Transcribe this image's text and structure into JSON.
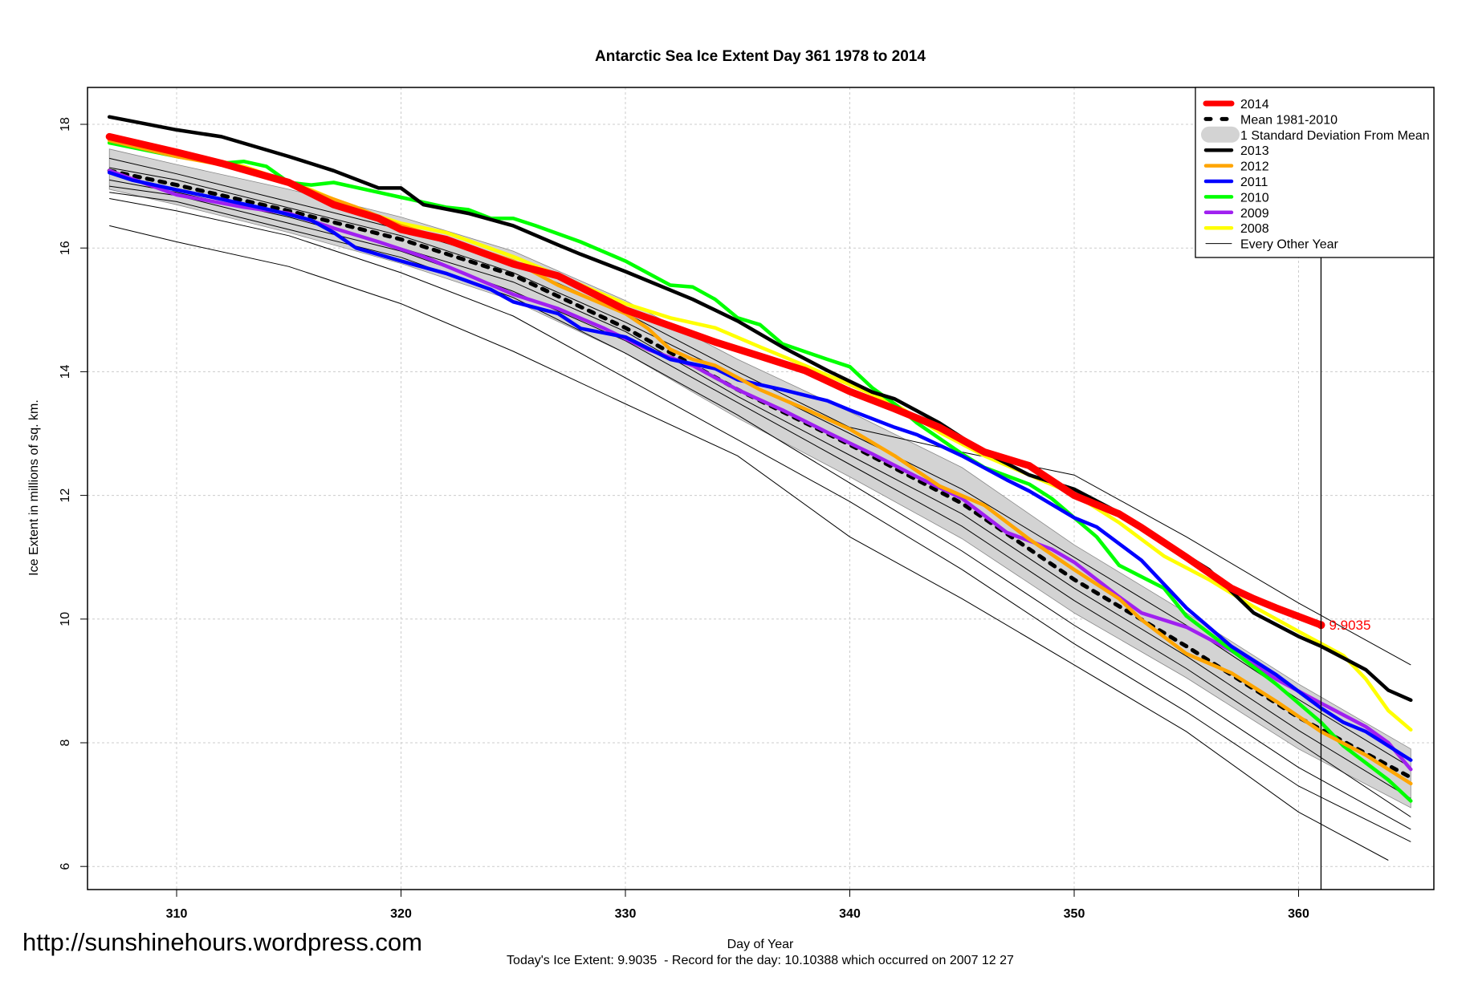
{
  "chart_data": {
    "type": "line",
    "title": "Antarctic Sea Ice Extent Day 361 1978 to 2014",
    "xlabel": "Day of Year",
    "ylabel": "Ice Extent in millions of sq. km.",
    "xlim": [
      307,
      365
    ],
    "ylim": [
      5.7,
      18.6
    ],
    "x_ticks": [
      310,
      320,
      330,
      340,
      350,
      360
    ],
    "y_ticks": [
      6,
      8,
      10,
      12,
      14,
      16,
      18
    ],
    "grid": true,
    "legend_position": "top-right",
    "current_day": 361,
    "current_value_label": "9.9035",
    "footnote": "Today's Ice Extent: 9.9035  - Record for the day: 10.10388 which occurred on 2007 12 27",
    "watermark": "http://sunshinehours.wordpress.com",
    "legend": [
      {
        "label": "2014",
        "color": "#ff0000",
        "style": "thick"
      },
      {
        "label": "Mean 1981-2010",
        "color": "#000000",
        "style": "dashed"
      },
      {
        "label": "1 Standard Deviation From Mean",
        "color": "#d3d3d3",
        "style": "band"
      },
      {
        "label": "2013",
        "color": "#000000",
        "style": "line"
      },
      {
        "label": "2012",
        "color": "#ffa500",
        "style": "line"
      },
      {
        "label": "2011",
        "color": "#0000ff",
        "style": "line"
      },
      {
        "label": "2010",
        "color": "#00ff00",
        "style": "line"
      },
      {
        "label": "2009",
        "color": "#a020f0",
        "style": "line"
      },
      {
        "label": "2008",
        "color": "#ffff00",
        "style": "line"
      },
      {
        "label": "Every Other Year",
        "color": "#000000",
        "style": "thin"
      }
    ],
    "sd_band": {
      "x": [
        307,
        310,
        315,
        320,
        325,
        330,
        335,
        340,
        345,
        350,
        355,
        360,
        365
      ],
      "upper": [
        17.6,
        17.35,
        16.95,
        16.5,
        15.95,
        15.15,
        14.2,
        13.35,
        12.45,
        11.2,
        10.1,
        8.95,
        7.9
      ],
      "lower": [
        16.95,
        16.7,
        16.25,
        15.75,
        15.15,
        14.3,
        13.25,
        12.3,
        11.3,
        10.1,
        9.05,
        7.9,
        6.95
      ]
    },
    "mean": {
      "x": [
        307,
        310,
        315,
        320,
        325,
        330,
        335,
        340,
        345,
        350,
        355,
        360,
        365
      ],
      "y": [
        17.25,
        17.02,
        16.6,
        16.14,
        15.56,
        14.71,
        13.71,
        12.82,
        11.87,
        10.64,
        9.56,
        8.41,
        7.44
      ]
    },
    "other_years": [
      {
        "x": [
          307,
          310,
          315,
          320,
          325,
          330,
          335,
          340,
          345,
          350,
          355,
          360,
          364
        ],
        "y": [
          16.36,
          16.1,
          15.7,
          15.1,
          14.33,
          13.48,
          12.64,
          11.33,
          10.33,
          9.26,
          8.18,
          6.88,
          6.1
        ]
      },
      {
        "x": [
          307,
          310,
          315,
          320,
          325,
          330,
          335,
          340,
          345,
          350,
          355,
          360,
          365
        ],
        "y": [
          17.45,
          17.2,
          16.75,
          16.3,
          15.75,
          14.95,
          14.0,
          13.1,
          12.7,
          12.33,
          11.33,
          10.26,
          9.26
        ]
      },
      {
        "x": [
          307,
          310,
          315,
          320,
          325,
          330,
          335,
          340,
          345,
          350,
          355,
          360,
          365
        ],
        "y": [
          16.8,
          16.6,
          16.2,
          15.6,
          14.9,
          13.9,
          12.9,
          11.9,
          10.8,
          9.6,
          8.5,
          7.3,
          6.4
        ]
      },
      {
        "x": [
          307,
          310,
          315,
          320,
          325,
          330,
          335,
          340,
          345,
          350,
          355,
          360,
          365
        ],
        "y": [
          17.0,
          16.85,
          16.4,
          15.95,
          15.3,
          14.5,
          13.5,
          12.5,
          11.5,
          10.3,
          9.2,
          8.0,
          6.8
        ]
      },
      {
        "x": [
          307,
          310,
          315,
          320,
          325,
          330,
          335,
          340,
          345,
          350,
          355,
          360,
          365
        ],
        "y": [
          17.3,
          17.1,
          16.65,
          16.2,
          15.6,
          14.8,
          13.9,
          13.0,
          12.1,
          11.0,
          9.9,
          8.7,
          7.6
        ]
      },
      {
        "x": [
          307,
          310,
          315,
          320,
          325,
          330,
          335,
          340,
          345,
          350,
          355,
          360,
          365
        ],
        "y": [
          16.9,
          16.75,
          16.3,
          15.85,
          15.2,
          14.3,
          13.3,
          12.2,
          11.1,
          9.9,
          8.8,
          7.6,
          6.6
        ]
      },
      {
        "x": [
          307,
          310,
          315,
          320,
          325,
          330,
          335,
          340,
          345,
          350,
          355,
          360,
          365
        ],
        "y": [
          17.1,
          16.9,
          16.5,
          16.0,
          15.45,
          14.65,
          13.6,
          12.65,
          11.7,
          10.5,
          9.4,
          8.2,
          7.1
        ]
      }
    ],
    "series": [
      {
        "name": "2008",
        "color": "#ffff00",
        "x": [
          307,
          310,
          313,
          316,
          318,
          320,
          322,
          325,
          327,
          330,
          332,
          334,
          336,
          338,
          340,
          342,
          344,
          346,
          348,
          350,
          352,
          354,
          356,
          358,
          360,
          362,
          363,
          364,
          365
        ],
        "y": [
          17.7,
          17.55,
          17.32,
          16.94,
          16.63,
          16.4,
          16.25,
          15.86,
          15.56,
          15.1,
          14.87,
          14.71,
          14.4,
          14.1,
          13.79,
          13.48,
          13.02,
          12.64,
          12.33,
          12.02,
          11.56,
          11.02,
          10.64,
          10.2,
          9.8,
          9.41,
          9.03,
          8.52,
          8.21
        ]
      },
      {
        "name": "2009",
        "color": "#a020f0",
        "x": [
          307,
          310,
          313,
          315,
          317,
          319,
          321,
          323,
          325,
          327,
          329,
          331,
          333,
          335,
          337,
          339,
          341,
          343,
          345,
          347,
          349,
          350,
          352,
          353,
          355,
          357,
          359,
          361,
          363,
          364,
          365
        ],
        "y": [
          17.25,
          16.86,
          16.66,
          16.56,
          16.32,
          16.1,
          15.86,
          15.56,
          15.25,
          15.02,
          14.71,
          14.36,
          14.1,
          13.71,
          13.38,
          13.02,
          12.67,
          12.3,
          11.95,
          11.4,
          11.13,
          10.92,
          10.36,
          10.1,
          9.87,
          9.49,
          9.03,
          8.64,
          8.26,
          8.0,
          7.57
        ]
      },
      {
        "name": "2010",
        "color": "#00ff00",
        "x": [
          307,
          310,
          312,
          313,
          314,
          315,
          316,
          317,
          319,
          320,
          322,
          323,
          324,
          325,
          326,
          328,
          330,
          332,
          333,
          334,
          335,
          336,
          337,
          339,
          340,
          341,
          342,
          343,
          345,
          346,
          348,
          349,
          351,
          352,
          354,
          355,
          357,
          359,
          360,
          361,
          362,
          364,
          365
        ],
        "y": [
          17.7,
          17.48,
          17.37,
          17.4,
          17.32,
          17.06,
          17.02,
          17.06,
          16.9,
          16.82,
          16.66,
          16.62,
          16.48,
          16.48,
          16.36,
          16.1,
          15.79,
          15.4,
          15.37,
          15.17,
          14.87,
          14.76,
          14.45,
          14.2,
          14.08,
          13.74,
          13.48,
          13.17,
          12.67,
          12.45,
          12.18,
          11.95,
          11.33,
          10.87,
          10.5,
          10.05,
          9.5,
          8.95,
          8.64,
          8.33,
          7.95,
          7.4,
          7.06
        ]
      },
      {
        "name": "2011",
        "color": "#0000ff",
        "x": [
          307,
          308,
          310,
          312,
          314,
          316,
          317,
          318,
          320,
          322,
          324,
          325,
          327,
          328,
          330,
          332,
          334,
          335,
          337,
          339,
          340,
          342,
          343,
          345,
          347,
          348,
          350,
          351,
          353,
          355,
          357,
          359,
          361,
          362,
          363,
          365
        ],
        "y": [
          17.22,
          17.1,
          16.94,
          16.79,
          16.63,
          16.45,
          16.25,
          16.0,
          15.79,
          15.59,
          15.33,
          15.13,
          14.94,
          14.7,
          14.56,
          14.2,
          14.05,
          13.87,
          13.71,
          13.53,
          13.38,
          13.1,
          12.98,
          12.64,
          12.25,
          12.07,
          11.64,
          11.49,
          10.95,
          10.18,
          9.56,
          9.1,
          8.56,
          8.33,
          8.18,
          7.72
        ]
      },
      {
        "name": "2012",
        "color": "#ffa500",
        "x": [
          307,
          310,
          313,
          315,
          317,
          318,
          320,
          322,
          325,
          327,
          330,
          331,
          332,
          333,
          334,
          336,
          338,
          340,
          342,
          344,
          346,
          348,
          350,
          352,
          353,
          355,
          357,
          359,
          361,
          363,
          365
        ],
        "y": [
          17.74,
          17.48,
          17.28,
          17.06,
          16.79,
          16.66,
          16.36,
          16.14,
          15.79,
          15.4,
          14.94,
          14.7,
          14.36,
          14.2,
          14.1,
          13.71,
          13.4,
          13.07,
          12.64,
          12.15,
          11.84,
          11.29,
          10.8,
          10.33,
          9.99,
          9.44,
          9.13,
          8.67,
          8.18,
          7.8,
          7.34
        ]
      },
      {
        "name": "2013",
        "color": "#000000",
        "x": [
          307,
          308,
          310,
          312,
          315,
          317,
          319,
          320,
          321,
          323,
          325,
          327,
          328,
          330,
          333,
          335,
          337,
          339,
          341,
          342,
          344,
          346,
          348,
          350,
          352,
          354,
          356,
          358,
          360,
          361,
          363,
          364,
          365
        ],
        "y": [
          18.12,
          18.05,
          17.91,
          17.8,
          17.48,
          17.25,
          16.97,
          16.97,
          16.7,
          16.56,
          16.36,
          16.05,
          15.9,
          15.62,
          15.17,
          14.82,
          14.4,
          14.02,
          13.67,
          13.56,
          13.17,
          12.7,
          12.33,
          12.1,
          11.72,
          11.25,
          10.8,
          10.1,
          9.72,
          9.56,
          9.18,
          8.85,
          8.69
        ]
      },
      {
        "name": "2014",
        "color": "#ff0000",
        "x": [
          307,
          310,
          312,
          315,
          317,
          319,
          320,
          322,
          325,
          327,
          330,
          332,
          334,
          336,
          338,
          340,
          342,
          344,
          346,
          348,
          350,
          352,
          353,
          355,
          357,
          358,
          359,
          361
        ],
        "y": [
          17.8,
          17.55,
          17.37,
          17.06,
          16.7,
          16.48,
          16.3,
          16.14,
          15.74,
          15.55,
          15.0,
          14.74,
          14.48,
          14.25,
          14.02,
          13.68,
          13.4,
          13.1,
          12.7,
          12.48,
          12.0,
          11.7,
          11.48,
          11.0,
          10.5,
          10.33,
          10.18,
          9.9035
        ]
      }
    ]
  }
}
